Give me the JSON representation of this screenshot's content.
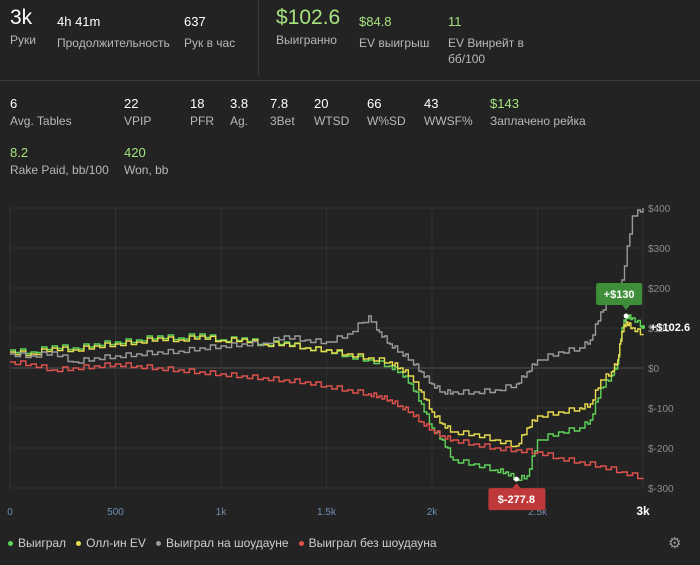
{
  "summary": {
    "hands": {
      "value": "3k",
      "label": "Руки"
    },
    "duration": {
      "value": "4h 41m",
      "label": "Продолжительность"
    },
    "hands_per_hour": {
      "value": "637",
      "label": "Рук в час"
    },
    "won": {
      "value": "$102.6",
      "label": "Выигранно"
    },
    "ev_won": {
      "value": "$84.8",
      "label": "EV выигрыш"
    },
    "ev_winrate": {
      "value": "11",
      "label_line1": "EV Винрейт в",
      "label_line2": "бб/100"
    }
  },
  "stats": [
    {
      "value": "6",
      "label": "Avg. Tables"
    },
    {
      "value": "22",
      "label": "VPIP"
    },
    {
      "value": "18",
      "label": "PFR"
    },
    {
      "value": "3.8",
      "label": "Ag."
    },
    {
      "value": "7.8",
      "label": "3Bet"
    },
    {
      "value": "20",
      "label": "WTSD"
    },
    {
      "value": "66",
      "label": "W%SD"
    },
    {
      "value": "43",
      "label": "WWSF%"
    },
    {
      "value": "$143",
      "label": "Заплачено рейка"
    },
    {
      "value": "8.2",
      "label": "Rake Paid, bb/100"
    },
    {
      "value": "420",
      "label": "Won, bb"
    }
  ],
  "chart_data": {
    "type": "line",
    "x_ticks": [
      {
        "v": 0,
        "label": "0"
      },
      {
        "v": 500,
        "label": "500"
      },
      {
        "v": 1000,
        "label": "1k"
      },
      {
        "v": 1500,
        "label": "1.5k"
      },
      {
        "v": 2000,
        "label": "2k"
      },
      {
        "v": 2500,
        "label": "2.5k"
      },
      {
        "v": 3000,
        "label": "3k"
      }
    ],
    "y_ticks": [
      {
        "v": 400,
        "label": "$400"
      },
      {
        "v": 300,
        "label": "$300"
      },
      {
        "v": 200,
        "label": "$200"
      },
      {
        "v": 100,
        "label": "$100"
      },
      {
        "v": 0,
        "label": "$0"
      },
      {
        "v": -100,
        "label": "$-100"
      },
      {
        "v": -200,
        "label": "$-200"
      },
      {
        "v": -300,
        "label": "$-300"
      }
    ],
    "xlim": [
      0,
      3000
    ],
    "ylim": [
      -300,
      400
    ],
    "series": [
      {
        "name": "Выиграл",
        "color": "#5fd35a",
        "points": [
          [
            0,
            45
          ],
          [
            100,
            40
          ],
          [
            200,
            55
          ],
          [
            300,
            50
          ],
          [
            400,
            60
          ],
          [
            500,
            65
          ],
          [
            600,
            70
          ],
          [
            700,
            80
          ],
          [
            800,
            75
          ],
          [
            900,
            85
          ],
          [
            1000,
            70
          ],
          [
            1100,
            75
          ],
          [
            1200,
            60
          ],
          [
            1300,
            65
          ],
          [
            1400,
            50
          ],
          [
            1500,
            45
          ],
          [
            1600,
            30
          ],
          [
            1700,
            20
          ],
          [
            1800,
            5
          ],
          [
            1850,
            -10
          ],
          [
            1900,
            -40
          ],
          [
            1950,
            -90
          ],
          [
            2000,
            -150
          ],
          [
            2050,
            -180
          ],
          [
            2100,
            -230
          ],
          [
            2200,
            -240
          ],
          [
            2300,
            -255
          ],
          [
            2350,
            -260
          ],
          [
            2400,
            -277.8
          ],
          [
            2450,
            -270
          ],
          [
            2500,
            -180
          ],
          [
            2600,
            -160
          ],
          [
            2700,
            -150
          ],
          [
            2750,
            -130
          ],
          [
            2800,
            -50
          ],
          [
            2850,
            -20
          ],
          [
            2880,
            10
          ],
          [
            2900,
            100
          ],
          [
            2920,
            130
          ],
          [
            2950,
            125
          ],
          [
            3000,
            102.6
          ]
        ]
      },
      {
        "name": "Олл-ин EV",
        "color": "#e7dd4e",
        "points": [
          [
            0,
            40
          ],
          [
            100,
            35
          ],
          [
            200,
            50
          ],
          [
            300,
            45
          ],
          [
            400,
            55
          ],
          [
            500,
            60
          ],
          [
            600,
            65
          ],
          [
            700,
            75
          ],
          [
            800,
            70
          ],
          [
            900,
            80
          ],
          [
            1000,
            68
          ],
          [
            1100,
            72
          ],
          [
            1200,
            58
          ],
          [
            1300,
            62
          ],
          [
            1400,
            50
          ],
          [
            1500,
            45
          ],
          [
            1600,
            35
          ],
          [
            1700,
            25
          ],
          [
            1800,
            15
          ],
          [
            1850,
            0
          ],
          [
            1900,
            -20
          ],
          [
            1950,
            -60
          ],
          [
            2000,
            -110
          ],
          [
            2050,
            -140
          ],
          [
            2100,
            -160
          ],
          [
            2200,
            -165
          ],
          [
            2300,
            -180
          ],
          [
            2400,
            -195
          ],
          [
            2450,
            -150
          ],
          [
            2500,
            -120
          ],
          [
            2600,
            -110
          ],
          [
            2700,
            -100
          ],
          [
            2750,
            -90
          ],
          [
            2800,
            -30
          ],
          [
            2850,
            -10
          ],
          [
            2880,
            20
          ],
          [
            2900,
            90
          ],
          [
            2920,
            115
          ],
          [
            2950,
            100
          ],
          [
            3000,
            84.8
          ]
        ]
      },
      {
        "name": "Выиграл на шоудауне",
        "color": "#9a9a9a",
        "points": [
          [
            0,
            35
          ],
          [
            100,
            30
          ],
          [
            200,
            40
          ],
          [
            300,
            15
          ],
          [
            400,
            25
          ],
          [
            500,
            30
          ],
          [
            600,
            35
          ],
          [
            700,
            40
          ],
          [
            800,
            42
          ],
          [
            900,
            50
          ],
          [
            1000,
            55
          ],
          [
            1100,
            60
          ],
          [
            1200,
            62
          ],
          [
            1300,
            80
          ],
          [
            1400,
            70
          ],
          [
            1500,
            65
          ],
          [
            1600,
            85
          ],
          [
            1700,
            130
          ],
          [
            1750,
            90
          ],
          [
            1800,
            60
          ],
          [
            1850,
            40
          ],
          [
            1900,
            20
          ],
          [
            1950,
            -10
          ],
          [
            2000,
            -40
          ],
          [
            2050,
            -60
          ],
          [
            2100,
            -60
          ],
          [
            2200,
            -60
          ],
          [
            2300,
            -55
          ],
          [
            2400,
            -40
          ],
          [
            2450,
            -10
          ],
          [
            2500,
            20
          ],
          [
            2600,
            40
          ],
          [
            2700,
            50
          ],
          [
            2750,
            70
          ],
          [
            2800,
            140
          ],
          [
            2850,
            180
          ],
          [
            2900,
            220
          ],
          [
            2950,
            380
          ],
          [
            3000,
            400
          ]
        ]
      },
      {
        "name": "Выиграл без шоудауна",
        "color": "#e0524d",
        "points": [
          [
            0,
            15
          ],
          [
            100,
            10
          ],
          [
            200,
            -5
          ],
          [
            300,
            0
          ],
          [
            400,
            5
          ],
          [
            500,
            10
          ],
          [
            600,
            5
          ],
          [
            700,
            0
          ],
          [
            800,
            -5
          ],
          [
            900,
            -10
          ],
          [
            1000,
            -15
          ],
          [
            1100,
            -20
          ],
          [
            1200,
            -25
          ],
          [
            1300,
            -30
          ],
          [
            1400,
            -35
          ],
          [
            1500,
            -45
          ],
          [
            1600,
            -55
          ],
          [
            1700,
            -65
          ],
          [
            1750,
            -70
          ],
          [
            1800,
            -80
          ],
          [
            1850,
            -95
          ],
          [
            1900,
            -110
          ],
          [
            1950,
            -135
          ],
          [
            2000,
            -155
          ],
          [
            2050,
            -170
          ],
          [
            2100,
            -180
          ],
          [
            2200,
            -190
          ],
          [
            2300,
            -200
          ],
          [
            2400,
            -205
          ],
          [
            2500,
            -210
          ],
          [
            2600,
            -225
          ],
          [
            2700,
            -235
          ],
          [
            2800,
            -245
          ],
          [
            2900,
            -260
          ],
          [
            3000,
            -275
          ]
        ]
      }
    ],
    "annotations": {
      "max": {
        "label": "+$130",
        "x": 2920,
        "y": 130
      },
      "min": {
        "label": "$-277.8",
        "x": 2400,
        "y": -277.8
      },
      "end": {
        "label": "+$102.6",
        "x": 3000,
        "y": 102.6
      }
    },
    "end_label": "3k"
  },
  "legend": [
    {
      "label": "Выиграл",
      "color": "#5fd35a"
    },
    {
      "label": "Олл-ин EV",
      "color": "#e7dd4e"
    },
    {
      "label": "Выиграл на шоудауне",
      "color": "#9a9a9a"
    },
    {
      "label": "Выиграл без шоудауна",
      "color": "#e0524d"
    }
  ]
}
